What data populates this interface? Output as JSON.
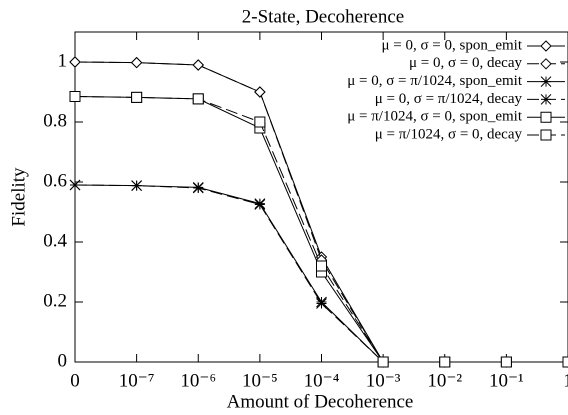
{
  "chart_data": {
    "type": "line",
    "title": "2-State, Decoherence",
    "xlabel": "Amount of Decoherence",
    "ylabel": "Fidelity",
    "categories": [
      "0",
      "10⁻⁷",
      "10⁻⁶",
      "10⁻⁵",
      "10⁻⁴",
      "10⁻³",
      "10⁻²",
      "10⁻¹",
      "1"
    ],
    "ylim": [
      0,
      1.1
    ],
    "yticks": [
      0,
      0.2,
      0.4,
      0.6,
      0.8,
      1
    ],
    "legend": "top-right",
    "series": [
      {
        "name": "μ = 0, σ = 0, spon_emit",
        "color": "#000000",
        "marker": "diamond",
        "dash": "solid",
        "values": [
          1,
          0.998,
          0.99,
          0.9,
          0.35,
          0,
          0,
          0,
          0
        ]
      },
      {
        "name": "μ = 0, σ = 0, decay",
        "color": "#000000",
        "marker": "diamond",
        "dash": "dashed",
        "values": [
          1,
          0.998,
          0.99,
          0.9,
          0.34,
          0,
          0,
          0,
          0
        ]
      },
      {
        "name": "μ = 0, σ = π/1024, spon_emit",
        "color": "#000000",
        "marker": "star",
        "dash": "solid",
        "values": [
          0.59,
          0.588,
          0.582,
          0.528,
          0.2,
          0,
          0,
          0,
          0
        ]
      },
      {
        "name": "μ = 0, σ = π/1024, decay",
        "color": "#000000",
        "marker": "star",
        "dash": "dashed",
        "values": [
          0.59,
          0.588,
          0.58,
          0.525,
          0.195,
          0,
          0,
          0,
          0
        ]
      },
      {
        "name": "μ = π/1024, σ = 0, spon_emit",
        "color": "#000000",
        "marker": "square",
        "dash": "solid",
        "values": [
          0.885,
          0.882,
          0.877,
          0.78,
          0.3,
          0,
          0,
          0,
          0
        ]
      },
      {
        "name": "μ = π/1024, σ = 0, decay",
        "color": "#000000",
        "marker": "square",
        "dash": "dashed",
        "values": [
          0.885,
          0.882,
          0.877,
          0.8,
          0.32,
          0,
          0,
          0,
          0
        ]
      }
    ]
  }
}
